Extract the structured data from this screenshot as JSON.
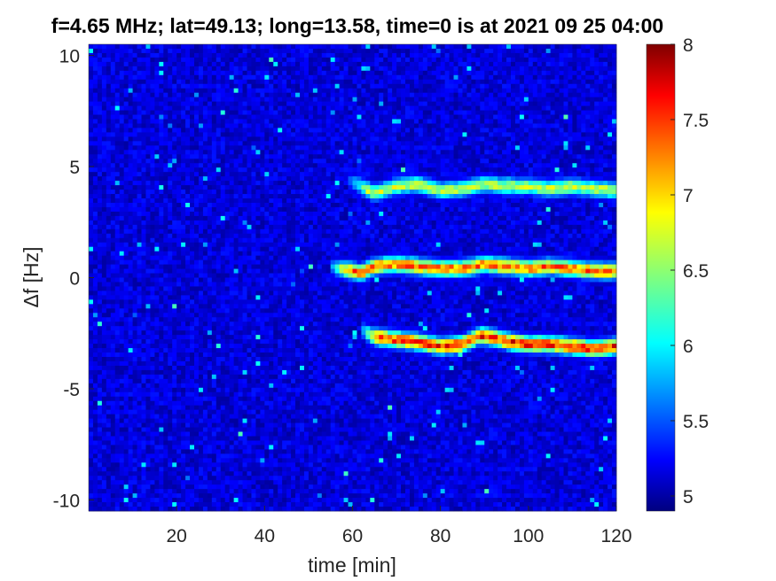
{
  "chart_data": {
    "type": "heatmap",
    "title": "f=4.65 MHz;  lat=49.13; long=13.58, time=0 is at 2021 09 25 04:00",
    "xlabel": "time [min]",
    "ylabel": "Δf [Hz]",
    "xlim": [
      0,
      120
    ],
    "ylim": [
      -10.5,
      10.5
    ],
    "xticks": [
      20,
      40,
      60,
      80,
      100,
      120
    ],
    "yticks": [
      -10,
      -5,
      0,
      5,
      10
    ],
    "colorbar": {
      "range": [
        4.9,
        8
      ],
      "ticks": [
        5,
        5.5,
        6,
        6.5,
        7,
        7.5,
        8
      ],
      "colormap": "jet"
    },
    "background_level": 5.0,
    "traces": [
      {
        "points": [
          [
            62,
            -2.3
          ],
          [
            64,
            -2.6
          ],
          [
            66,
            -2.7
          ],
          [
            70,
            -2.8
          ],
          [
            75,
            -2.9
          ],
          [
            80,
            -3.1
          ],
          [
            85,
            -3.0
          ],
          [
            89,
            -2.6
          ],
          [
            92,
            -2.7
          ],
          [
            96,
            -2.9
          ],
          [
            100,
            -3.0
          ],
          [
            105,
            -3.0
          ],
          [
            110,
            -3.1
          ],
          [
            115,
            -3.2
          ],
          [
            120,
            -3.1
          ]
        ],
        "peak": 7.9,
        "spread_hz": 0.35
      },
      {
        "points": [
          [
            55,
            0.5
          ],
          [
            60,
            0.3
          ],
          [
            62,
            0.2
          ],
          [
            65,
            0.5
          ],
          [
            70,
            0.6
          ],
          [
            75,
            0.5
          ],
          [
            80,
            0.4
          ],
          [
            85,
            0.4
          ],
          [
            90,
            0.6
          ],
          [
            95,
            0.5
          ],
          [
            100,
            0.4
          ],
          [
            105,
            0.5
          ],
          [
            110,
            0.4
          ],
          [
            115,
            0.3
          ],
          [
            120,
            0.3
          ]
        ],
        "peak": 7.6,
        "spread_hz": 0.35
      },
      {
        "points": [
          [
            59,
            4.4
          ],
          [
            62,
            4.1
          ],
          [
            65,
            3.8
          ],
          [
            70,
            4.1
          ],
          [
            75,
            4.2
          ],
          [
            80,
            3.9
          ],
          [
            85,
            4.0
          ],
          [
            90,
            4.2
          ],
          [
            95,
            4.1
          ],
          [
            100,
            4.1
          ],
          [
            105,
            4.0
          ],
          [
            110,
            4.1
          ],
          [
            115,
            4.0
          ],
          [
            120,
            3.9
          ]
        ],
        "peak": 6.9,
        "spread_hz": 0.35
      }
    ]
  }
}
